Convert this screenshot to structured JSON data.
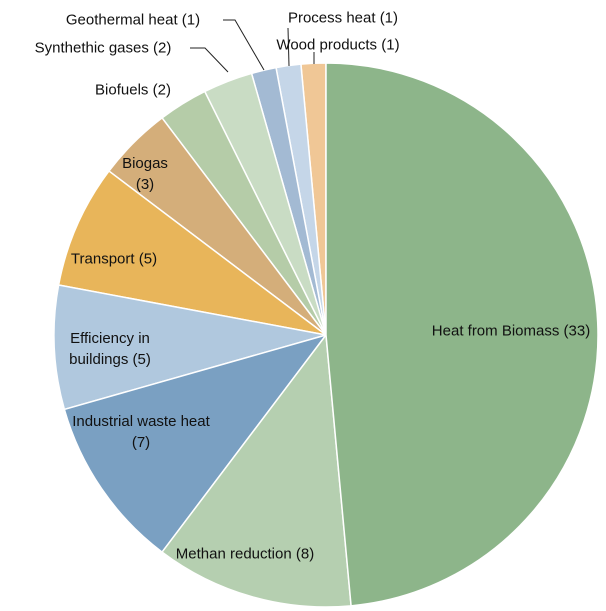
{
  "chart_data": {
    "type": "pie",
    "categories": [
      "Heat from Biomass",
      "Methan reduction",
      "Industrial waste heat",
      "Efficiency in buildings",
      "Transport",
      "Biogas",
      "Biofuels",
      "Synthethic gases",
      "Geothermal heat",
      "Process heat",
      "Wood products"
    ],
    "values": [
      33,
      8,
      7,
      5,
      5,
      3,
      2,
      2,
      1,
      1,
      1
    ],
    "value_labels": [
      "(33)",
      "(8)",
      "(7)",
      "(5)",
      "(5)",
      "(3)",
      "(2)",
      "(2)",
      "(1)",
      "(1)",
      "(1)"
    ],
    "colors": [
      "#8db58a",
      "#b5cfb0",
      "#7aa0c2",
      "#b0c8de",
      "#e8b55a",
      "#d4ae7a",
      "#b5cca8",
      "#c9dcc4",
      "#a3bad3",
      "#c5d6e8",
      "#f0c796"
    ]
  }
}
